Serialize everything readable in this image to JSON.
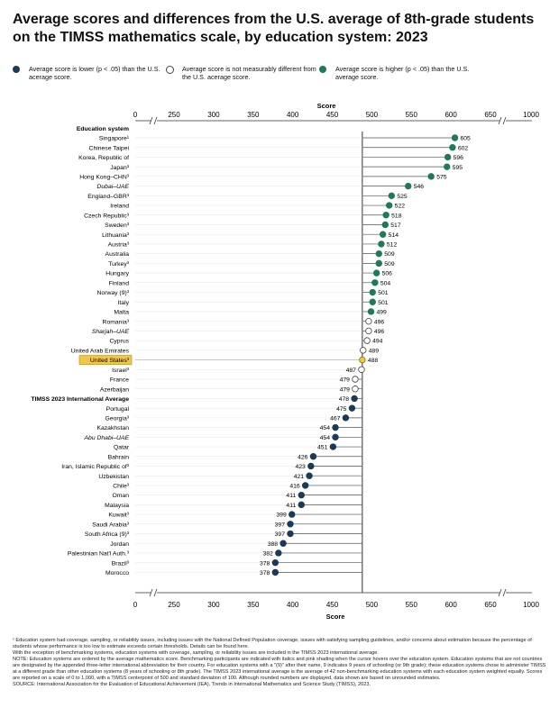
{
  "title": "Average scores and differences from the U.S. average of 8th-grade students on the TIMSS mathematics scale, by education system: 2023",
  "legend": {
    "lower": {
      "label": "Average score is lower (p < .05) than the U.S. acerage score.",
      "color": "#1b3a57"
    },
    "notdiff": {
      "label": "Average score is not measurably different from the U.S. acerage score.",
      "color": "#ffffff"
    },
    "higher": {
      "label": "Average score is higher (p < .05) than the U.S. average score.",
      "color": "#1f7a5c"
    }
  },
  "colors": {
    "lower": "#1b3a57",
    "higher": "#1f7a5c",
    "notdiff": "#ffffff",
    "us_highlight": "#f2c54b",
    "line": "#444444"
  },
  "chart_data": {
    "type": "scatter",
    "xlabel": "Score",
    "ylabel": "Education system",
    "xlim": [
      0,
      1000
    ],
    "axis_break": "between 0 and 250 and between 600 and 1000",
    "x_ticks": [
      "0",
      "250",
      "300",
      "350",
      "400",
      "450",
      "500",
      "550",
      "600",
      "650",
      "1000"
    ],
    "reference_score": 488,
    "rows": [
      {
        "name": "Singapore¹",
        "value": 605,
        "status": "higher"
      },
      {
        "name": "Chinese Taipei",
        "value": 602,
        "status": "higher"
      },
      {
        "name": "Korea, Republic of",
        "value": 596,
        "status": "higher"
      },
      {
        "name": "Japan³",
        "value": 595,
        "status": "higher"
      },
      {
        "name": "Hong Kong–CHN³",
        "value": 575,
        "status": "higher"
      },
      {
        "name": "Dubai–UAE",
        "value": 546,
        "status": "higher",
        "italic": true
      },
      {
        "name": "England–GBR³",
        "value": 525,
        "status": "higher"
      },
      {
        "name": "Ireland",
        "value": 522,
        "status": "higher"
      },
      {
        "name": "Czech Republic³",
        "value": 518,
        "status": "higher"
      },
      {
        "name": "Sweden³",
        "value": 517,
        "status": "higher"
      },
      {
        "name": "Lithuania³",
        "value": 514,
        "status": "higher"
      },
      {
        "name": "Austria³",
        "value": 512,
        "status": "higher"
      },
      {
        "name": "Australia",
        "value": 509,
        "status": "higher"
      },
      {
        "name": "Turkey³",
        "value": 509,
        "status": "higher"
      },
      {
        "name": "Hungary",
        "value": 506,
        "status": "higher"
      },
      {
        "name": "Finland",
        "value": 504,
        "status": "higher"
      },
      {
        "name": "Norway (9)³",
        "value": 501,
        "status": "higher"
      },
      {
        "name": "Italy",
        "value": 501,
        "status": "higher"
      },
      {
        "name": "Malta",
        "value": 499,
        "status": "higher"
      },
      {
        "name": "Romania³",
        "value": 496,
        "status": "notdiff"
      },
      {
        "name": "Sharjah–UAE",
        "value": 496,
        "status": "notdiff",
        "italic": true
      },
      {
        "name": "Cyprus",
        "value": 494,
        "status": "notdiff"
      },
      {
        "name": "United Arab Emirates",
        "value": 489,
        "status": "notdiff"
      },
      {
        "name": "United States³",
        "value": 488,
        "status": "notdiff",
        "highlight": true
      },
      {
        "name": "Israel³",
        "value": 487,
        "status": "notdiff"
      },
      {
        "name": "France",
        "value": 479,
        "status": "notdiff"
      },
      {
        "name": "Azerbaijan",
        "value": 479,
        "status": "notdiff"
      },
      {
        "name": "TIMSS 2023 International Average",
        "value": 478,
        "status": "lower",
        "bold": true
      },
      {
        "name": "Portugal",
        "value": 475,
        "status": "lower"
      },
      {
        "name": "Georgia³",
        "value": 467,
        "status": "lower"
      },
      {
        "name": "Kazakhstan",
        "value": 454,
        "status": "lower"
      },
      {
        "name": "Abu Dhabi–UAE",
        "value": 454,
        "status": "lower",
        "italic": true
      },
      {
        "name": "Qatar",
        "value": 451,
        "status": "lower"
      },
      {
        "name": "Bahrain",
        "value": 426,
        "status": "lower"
      },
      {
        "name": "Iran, Islamic Republic of³",
        "value": 423,
        "status": "lower"
      },
      {
        "name": "Uzbekistan",
        "value": 421,
        "status": "lower"
      },
      {
        "name": "Chile³",
        "value": 416,
        "status": "lower"
      },
      {
        "name": "Oman",
        "value": 411,
        "status": "lower"
      },
      {
        "name": "Malaysia",
        "value": 411,
        "status": "lower"
      },
      {
        "name": "Kuwait³",
        "value": 399,
        "status": "lower"
      },
      {
        "name": "Saudi Arabia³",
        "value": 397,
        "status": "lower"
      },
      {
        "name": "South Africa (9)³",
        "value": 397,
        "status": "lower"
      },
      {
        "name": "Jordan",
        "value": 388,
        "status": "lower"
      },
      {
        "name": "Palestinian Nat'l Auth.³",
        "value": 382,
        "status": "lower"
      },
      {
        "name": "Brazil³",
        "value": 378,
        "status": "lower"
      },
      {
        "name": "Morocco",
        "value": 378,
        "status": "lower"
      }
    ]
  },
  "footnotes": {
    "f1": "¹ Education system had coverage, sampling, or reliability issues, including issues with the National Defined Population coverage, issues with satisfying sampling guidelines, and/or concerns about estimation because the percentage of students whose performance is too low to estimate exceeds certain thresholds. Details can be found here.",
    "f2": "With the exception of benchmarking systems, education systems with coverage, sampling, or reliability issues are included in the TIMSS 2023 international average.",
    "note": "NOTE: Education systems are ordered by the average mathematics score. Benchmarking participants are indicated with italics and pink shading when the cursor hovers over the education system. Education systems that are not countries are designated by the appended three-letter international abbreviation for their country. For education systems with a \"(9)\" after their name, 9 indicates 9 years of schooling (or 9th grade); these education systems chose to administer TIMSS at a different grade than other education systems (8 years of schooling or 8th grade). The TIMSS 2023 international average is the average of 42 non-benchmarking education systems with each education system weighted equally. Scores are reported on a scale of 0 to 1,000, with a TIMSS centerpoint of 500 and standard deviation of 100. Although rounded numbers are displayed, data shown are based on unrounded estimates.",
    "source": "SOURCE: International Association for the Evaluation of Educational Achievement (IEA), Trends in International Mathematics and Science Study (TIMSS), 2023."
  }
}
